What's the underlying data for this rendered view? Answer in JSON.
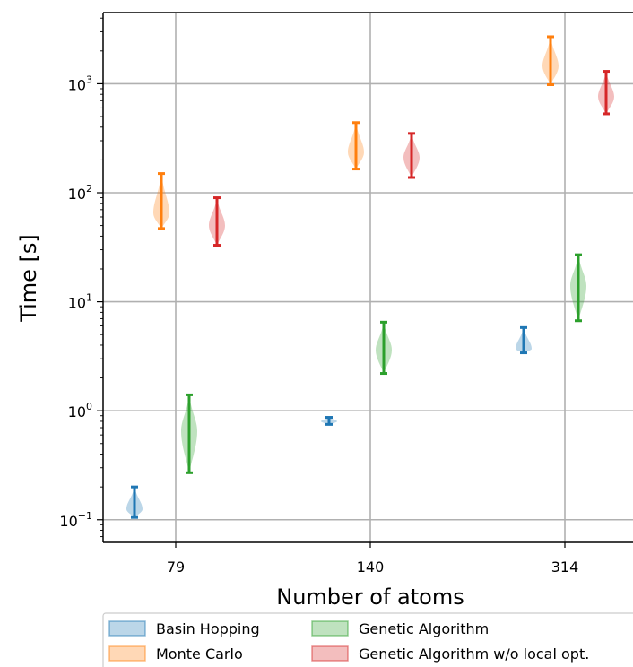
{
  "chart_data": {
    "type": "violin",
    "xlabel": "Number of atoms",
    "ylabel": "Time [s]",
    "yscale": "log",
    "ylim": [
      0.062,
      4500
    ],
    "categories": [
      "79",
      "140",
      "314"
    ],
    "yticks": [
      {
        "value": 0.1,
        "base": "10",
        "exp": "−1"
      },
      {
        "value": 1,
        "base": "10",
        "exp": "0"
      },
      {
        "value": 10,
        "base": "10",
        "exp": "1"
      },
      {
        "value": 100,
        "base": "10",
        "exp": "2"
      },
      {
        "value": 1000,
        "base": "10",
        "exp": "3"
      }
    ],
    "grid": true,
    "legend_position": "below",
    "series": [
      {
        "name": "Basin Hopping",
        "color": "#1f77b4",
        "values": [
          {
            "min": 0.105,
            "max": 0.2,
            "center": 0.125
          },
          {
            "min": 0.75,
            "max": 0.87,
            "center": 0.8
          },
          {
            "min": 3.4,
            "max": 5.8,
            "center": 3.7
          }
        ]
      },
      {
        "name": "Monte Carlo",
        "color": "#ff7f0e",
        "values": [
          {
            "min": 47,
            "max": 150,
            "center": 65
          },
          {
            "min": 165,
            "max": 440,
            "center": 235
          },
          {
            "min": 980,
            "max": 2700,
            "center": 1450
          }
        ]
      },
      {
        "name": "Genetic Algorithm",
        "color": "#2ca02c",
        "values": [
          {
            "min": 0.27,
            "max": 1.4,
            "center": 0.65
          },
          {
            "min": 2.2,
            "max": 6.5,
            "center": 3.6
          },
          {
            "min": 6.7,
            "max": 27,
            "center": 14
          }
        ]
      },
      {
        "name": "Genetic Algorithm w/o local opt.",
        "color": "#d62728",
        "values": [
          {
            "min": 33,
            "max": 90,
            "center": 50
          },
          {
            "min": 138,
            "max": 350,
            "center": 210
          },
          {
            "min": 530,
            "max": 1300,
            "center": 760
          }
        ]
      }
    ]
  }
}
